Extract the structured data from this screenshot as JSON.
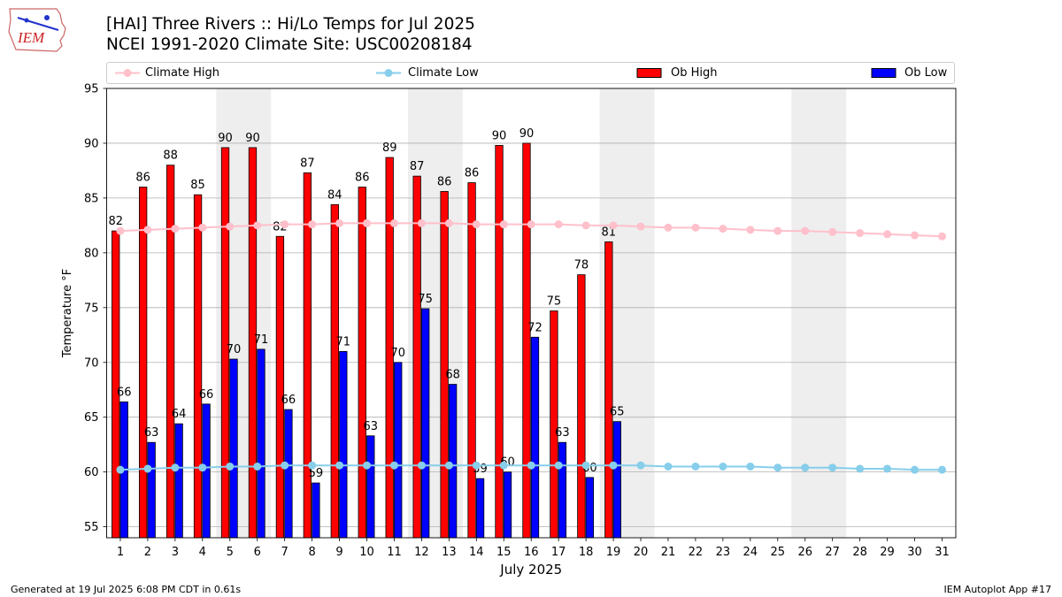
{
  "header": {
    "logo_text": "IEM",
    "title_line1": "[HAI] Three Rivers :: Hi/Lo Temps for Jul 2025",
    "title_line2": "NCEI 1991-2020 Climate Site: USC00208184"
  },
  "legend": {
    "climate_high": "Climate High",
    "climate_low": "Climate Low",
    "ob_high": "Ob High",
    "ob_low": "Ob Low"
  },
  "colors": {
    "climate_high": "#ffc0cb",
    "climate_low": "#87ceeb",
    "ob_high": "#ff0000",
    "ob_low": "#0000ff",
    "weekend_shade": "#eeeeee",
    "grid": "#b0b0b0"
  },
  "chart_data": {
    "type": "bar",
    "xlabel": "July 2025",
    "ylabel": "Temperature °F",
    "ylim": [
      54,
      95
    ],
    "yticks": [
      55,
      60,
      65,
      70,
      75,
      80,
      85,
      90,
      95
    ],
    "grid": "horizontal",
    "legend_position": "top",
    "days": [
      1,
      2,
      3,
      4,
      5,
      6,
      7,
      8,
      9,
      10,
      11,
      12,
      13,
      14,
      15,
      16,
      17,
      18,
      19,
      20,
      21,
      22,
      23,
      24,
      25,
      26,
      27,
      28,
      29,
      30,
      31
    ],
    "weekend_shading": [
      [
        5,
        6
      ],
      [
        12,
        13
      ],
      [
        19,
        20
      ],
      [
        26,
        27
      ]
    ],
    "series": [
      {
        "name": "Ob High",
        "kind": "bar",
        "values": [
          82,
          86,
          88,
          85.3,
          89.6,
          89.6,
          81.5,
          87.3,
          84.4,
          86,
          88.7,
          87,
          85.6,
          86.4,
          89.8,
          90,
          74.7,
          78,
          81
        ]
      },
      {
        "name": "Ob Low",
        "kind": "bar",
        "values": [
          66.4,
          62.7,
          64.4,
          66.2,
          70.3,
          71.2,
          65.7,
          59,
          71,
          63.3,
          70,
          74.9,
          68,
          59.4,
          60,
          72.3,
          62.7,
          59.5,
          64.6
        ]
      },
      {
        "name": "Climate High",
        "kind": "line",
        "values": [
          82,
          82.1,
          82.2,
          82.3,
          82.4,
          82.5,
          82.6,
          82.6,
          82.7,
          82.7,
          82.7,
          82.7,
          82.7,
          82.6,
          82.6,
          82.6,
          82.6,
          82.5,
          82.5,
          82.4,
          82.3,
          82.3,
          82.2,
          82.1,
          82,
          82,
          81.9,
          81.8,
          81.7,
          81.6,
          81.5
        ]
      },
      {
        "name": "Climate Low",
        "kind": "line",
        "values": [
          60.2,
          60.3,
          60.4,
          60.4,
          60.5,
          60.5,
          60.6,
          60.6,
          60.6,
          60.6,
          60.6,
          60.6,
          60.6,
          60.6,
          60.6,
          60.6,
          60.6,
          60.6,
          60.6,
          60.6,
          60.5,
          60.5,
          60.5,
          60.5,
          60.4,
          60.4,
          60.4,
          60.3,
          60.3,
          60.2,
          60.2
        ]
      }
    ],
    "high_labels": [
      "82",
      "86",
      "88",
      "85",
      "90",
      "90",
      "82",
      "87",
      "84",
      "86",
      "89",
      "87",
      "86",
      "86",
      "90",
      "90",
      "75",
      "78",
      "81"
    ],
    "low_labels": [
      "66",
      "63",
      "64",
      "66",
      "70",
      "71",
      "66",
      "59",
      "71",
      "63",
      "70",
      "75",
      "68",
      "59",
      "60",
      "72",
      "63",
      "60",
      "65"
    ]
  },
  "footer": {
    "generated": "Generated at 19 Jul 2025 6:08 PM CDT in 0.61s",
    "app": "IEM Autoplot App #17"
  }
}
